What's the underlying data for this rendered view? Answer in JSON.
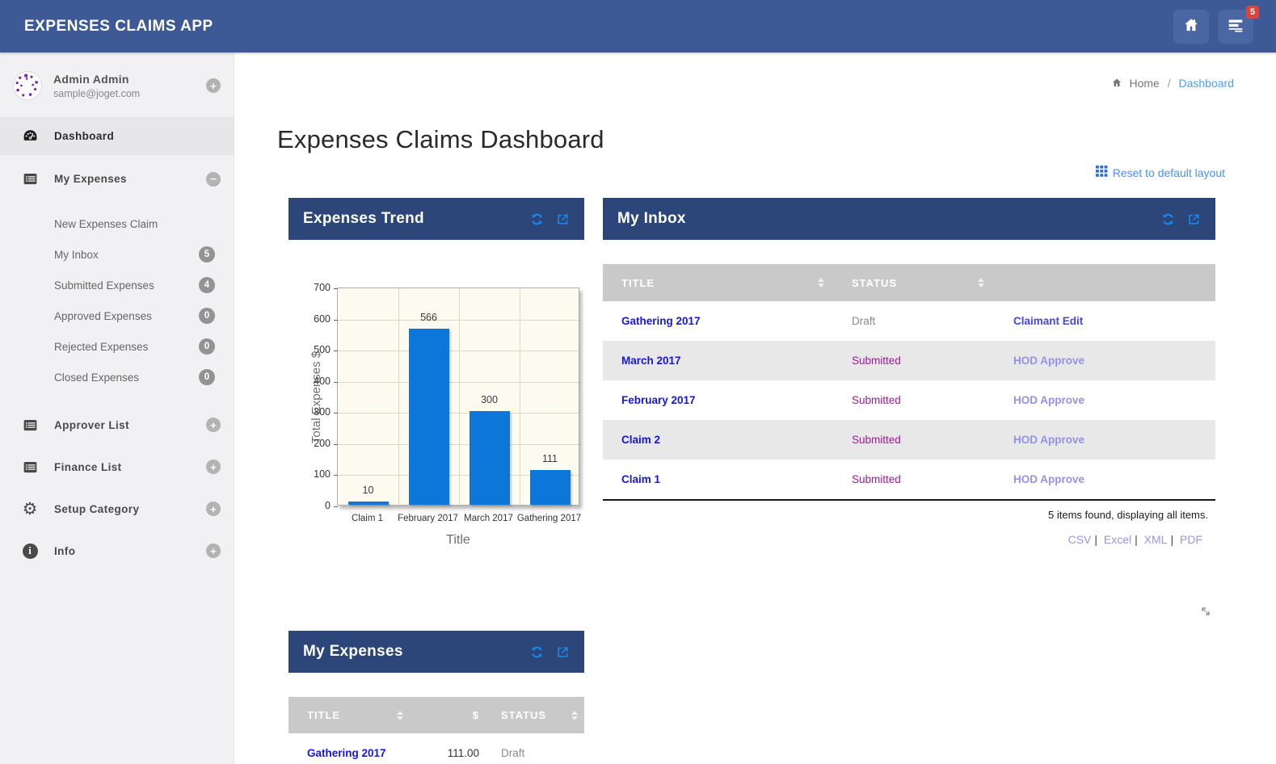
{
  "app": {
    "title": "EXPENSES CLAIMS APP",
    "inbox_badge": "5"
  },
  "sidebar": {
    "user": {
      "name": "Admin Admin",
      "email": "sample@joget.com"
    },
    "items": [
      {
        "label": "Dashboard",
        "icon": "dashboard-icon",
        "active": true
      },
      {
        "label": "My Expenses",
        "icon": "list-icon",
        "toggle": "minus",
        "children": [
          {
            "label": "New Expenses Claim",
            "badge": ""
          },
          {
            "label": "My Inbox",
            "badge": "5"
          },
          {
            "label": "Submitted Expenses",
            "badge": "4"
          },
          {
            "label": "Approved Expenses",
            "badge": "0"
          },
          {
            "label": "Rejected Expenses",
            "badge": "0"
          },
          {
            "label": "Closed Expenses",
            "badge": "0"
          }
        ]
      },
      {
        "label": "Approver List",
        "icon": "list-icon",
        "toggle": "plus"
      },
      {
        "label": "Finance List",
        "icon": "list-icon",
        "toggle": "plus"
      },
      {
        "label": "Setup Category",
        "icon": "gear-icon",
        "toggle": "plus"
      },
      {
        "label": "Info",
        "icon": "info-icon",
        "toggle": "plus"
      }
    ]
  },
  "breadcrumb": {
    "home": "Home",
    "separator": "/",
    "current": "Dashboard"
  },
  "page": {
    "title": "Expenses Claims Dashboard",
    "reset_link": "Reset to default layout"
  },
  "panels": {
    "expenses_trend": {
      "title": "Expenses Trend"
    },
    "my_inbox": {
      "title": "My Inbox",
      "columns": [
        "TITLE",
        "STATUS"
      ],
      "rows": [
        {
          "title": "Gathering 2017",
          "status": "Draft",
          "action": "Claimant Edit"
        },
        {
          "title": "March 2017",
          "status": "Submitted",
          "action": "HOD Approve"
        },
        {
          "title": "February 2017",
          "status": "Submitted",
          "action": "HOD Approve"
        },
        {
          "title": "Claim 2",
          "status": "Submitted",
          "action": "HOD Approve"
        },
        {
          "title": "Claim 1",
          "status": "Submitted",
          "action": "HOD Approve"
        }
      ],
      "summary": "5 items found, displaying all items.",
      "export_links": [
        "CSV",
        "Excel",
        "XML",
        "PDF"
      ]
    },
    "my_expenses": {
      "title": "My Expenses",
      "columns": [
        "TITLE",
        "$",
        "STATUS"
      ],
      "rows": [
        {
          "title": "Gathering 2017",
          "amount": "111.00",
          "status": "Draft"
        }
      ]
    }
  },
  "chart_data": {
    "type": "bar",
    "categories": [
      "Claim 1",
      "February 2017",
      "March 2017",
      "Gathering 2017"
    ],
    "values": [
      10,
      566,
      300,
      111
    ],
    "title": "Expenses Trend",
    "xlabel": "Title",
    "ylabel": "Total Expenses $",
    "ylim": [
      0,
      700
    ],
    "ytick_step": 100,
    "bar_color": "#0d77d9",
    "grid": true,
    "plot_background": "#fdfaf0"
  },
  "colors": {
    "navbar": "#3d5a97",
    "panel_header": "#2d4679",
    "accent_icon_blue": "#1787e8",
    "breadcrumb_link": "#4a9df8",
    "title_link": "#1515e6",
    "badge_red": "#d9443d",
    "status": {
      "Draft": "#8a8a8a",
      "Submitted": "#a2169a"
    },
    "action": {
      "Claimant Edit": "#4545ef",
      "HOD Approve": "#9292ea"
    }
  }
}
